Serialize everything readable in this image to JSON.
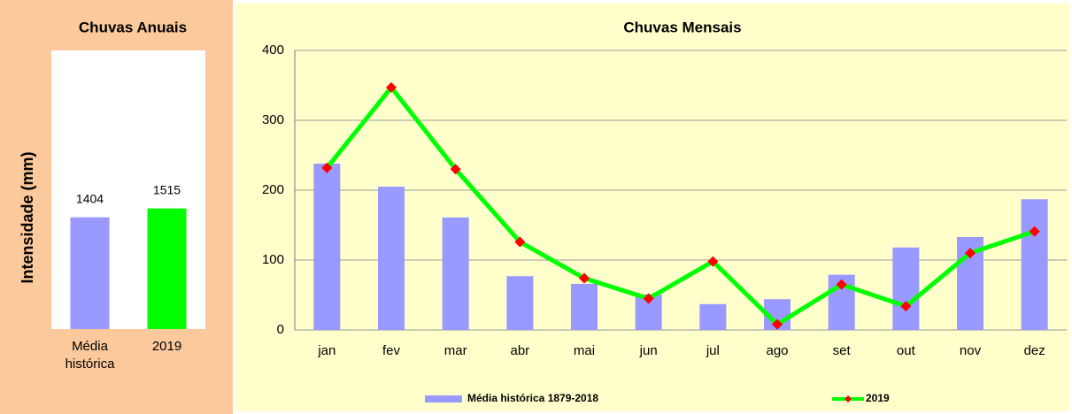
{
  "chart_data": [
    {
      "type": "bar",
      "title": "Chuvas Anuais",
      "y_label": "Intensidade (mm)",
      "categories": [
        "Média histórica",
        "2019"
      ],
      "values": [
        1404,
        1515
      ],
      "colors": [
        "#9999ff",
        "#00ff00"
      ],
      "ylim": [
        0,
        3500
      ]
    },
    {
      "type": "combo",
      "title": "Chuvas Mensais",
      "categories": [
        "jan",
        "fev",
        "mar",
        "abr",
        "mai",
        "jun",
        "jul",
        "ago",
        "set",
        "out",
        "nov",
        "dez"
      ],
      "series": [
        {
          "name": "Média histórica 1879-2018",
          "type": "bar",
          "color": "#9999ff",
          "values": [
            238,
            205,
            161,
            77,
            66,
            51,
            37,
            44,
            79,
            118,
            133,
            187
          ]
        },
        {
          "name": "2019",
          "type": "line",
          "color": "#00ff00",
          "marker_color": "#ff0000",
          "values": [
            232,
            347,
            230,
            126,
            74,
            45,
            98,
            8,
            65,
            34,
            110,
            141
          ]
        }
      ],
      "ylim": [
        0,
        400
      ],
      "yticks": [
        0,
        100,
        200,
        300,
        400
      ],
      "grid": true,
      "legend": "bottom"
    }
  ]
}
